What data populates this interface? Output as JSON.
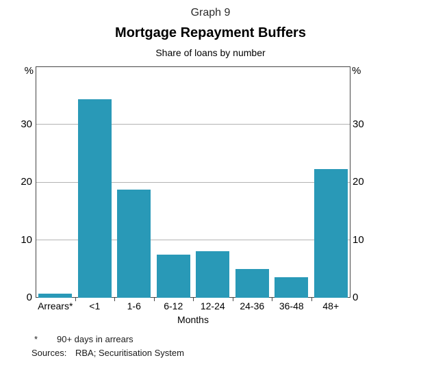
{
  "header": {
    "graph_label": "Graph 9",
    "title": "Mortgage Repayment Buffers",
    "subtitle": "Share of loans by number"
  },
  "chart_data": {
    "type": "bar",
    "title": "Mortgage Repayment Buffers",
    "subtitle": "Share of loans by number",
    "categories": [
      "Arrears*",
      "<1",
      "1-6",
      "6-12",
      "12-24",
      "24-36",
      "36-48",
      "48+"
    ],
    "values": [
      0.7,
      34.3,
      18.7,
      7.5,
      8.1,
      5.0,
      3.6,
      22.2
    ],
    "xlabel": "Months",
    "ylabel_left": "%",
    "ylabel_right": "%",
    "ylim": [
      0,
      40
    ],
    "yticks": [
      0,
      10,
      20,
      30
    ],
    "grid": true,
    "legend": "none",
    "bar_color": "#2999b7"
  },
  "footnotes": {
    "asterisk_marker": "*",
    "asterisk_text": "90+ days in arrears",
    "sources_label": "Sources:",
    "sources_text": "RBA; Securitisation System"
  }
}
